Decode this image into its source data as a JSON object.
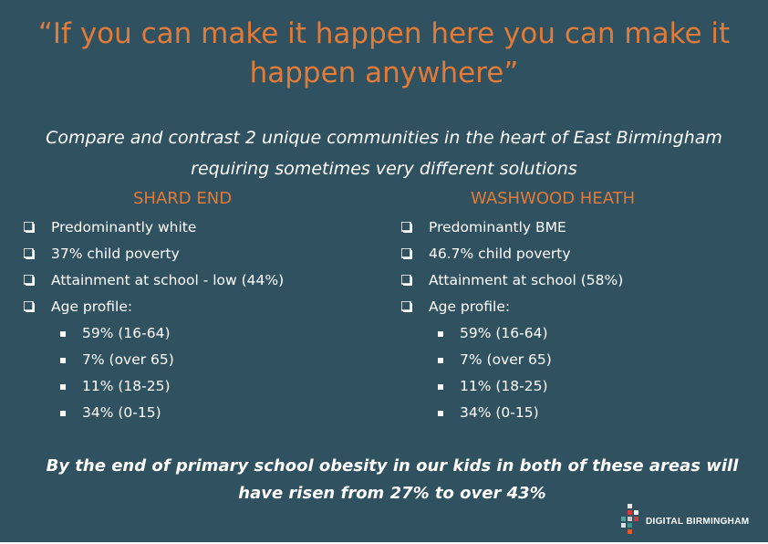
{
  "slide": {
    "title": "“If you can make it happen here you can make it happen anywhere”",
    "subtitle": "Compare and contrast 2 unique communities in the heart of East Birmingham requiring sometimes very different solutions",
    "left": {
      "heading": "SHARD END",
      "items": [
        "Predominantly white",
        "37% child poverty",
        "Attainment at school  - low (44%)",
        "Age profile:"
      ],
      "age_profile": [
        "59% (16-64)",
        "7% (over 65)",
        "11% (18-25)",
        "34% (0-15)"
      ]
    },
    "right": {
      "heading": "WASHWOOD HEATH",
      "items": [
        "Predominantly BME",
        "46.7% child poverty",
        "Attainment at school (58%)",
        "Age profile:"
      ],
      "age_profile": [
        "59% (16-64)",
        "7% (over 65)",
        "11% (18-25)",
        "34% (0-15)"
      ]
    },
    "footer": "By the end of primary school obesity in our kids in both of these areas will have risen from 27% to over 43%",
    "logo_text": "DIGITAL BIRMINGHAM"
  },
  "colors": {
    "background": "#2f5160",
    "accent": "#e07b39",
    "text": "#ffffff"
  },
  "icons": {
    "bullet": "hollow-square-bullet-icon",
    "sub_bullet": "filled-square-bullet-icon",
    "logo": "digital-birmingham-logo-icon"
  }
}
